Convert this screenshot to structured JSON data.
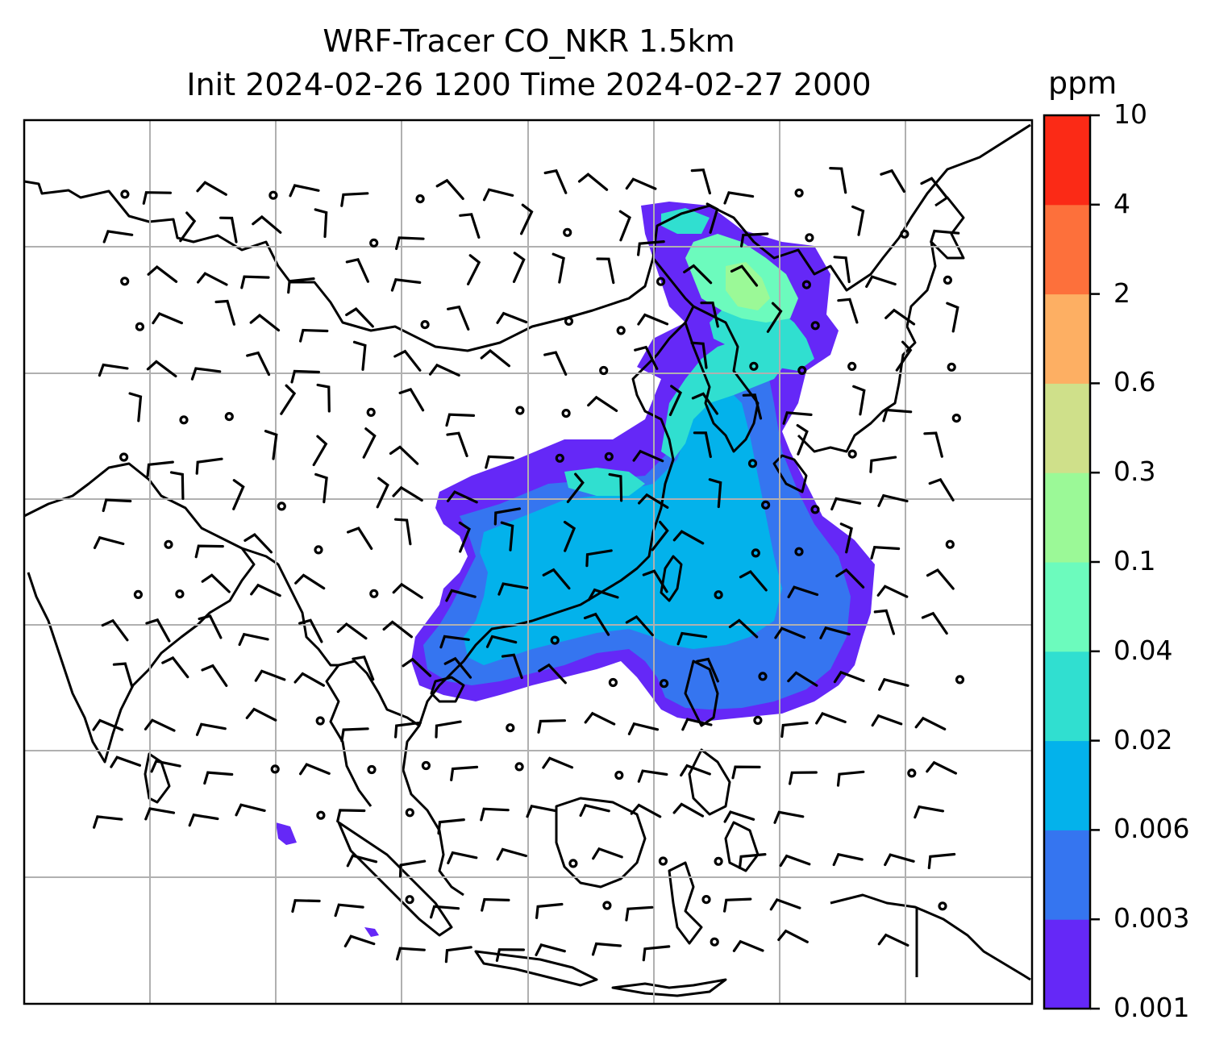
{
  "title": {
    "line1": "WRF-Tracer CO_NKR 1.5km",
    "line2": "Init 2024-02-26 1200 Time 2024-02-27 2000"
  },
  "colorbar": {
    "unit": "ppm",
    "levels": [
      "0.001",
      "0.003",
      "0.006",
      "0.02",
      "0.04",
      "0.1",
      "0.3",
      "0.6",
      "2",
      "4",
      "10"
    ],
    "colors": [
      "#6528f7",
      "#3575f0",
      "#03b2eb",
      "#30dfd0",
      "#6cfbbd",
      "#9bf997",
      "#cfe08a",
      "#fdaf63",
      "#fd703b",
      "#fb2a16"
    ]
  },
  "map": {
    "gridlines": true,
    "grid_color": "#b0b0b0",
    "coastline_color": "#000000",
    "plume_colors": {
      "low": "#6528f7",
      "mid": "#3575f0",
      "main": "#03b2eb",
      "high": "#30dfd0",
      "peak": "#6cfbbd",
      "max": "#9bf997"
    }
  }
}
